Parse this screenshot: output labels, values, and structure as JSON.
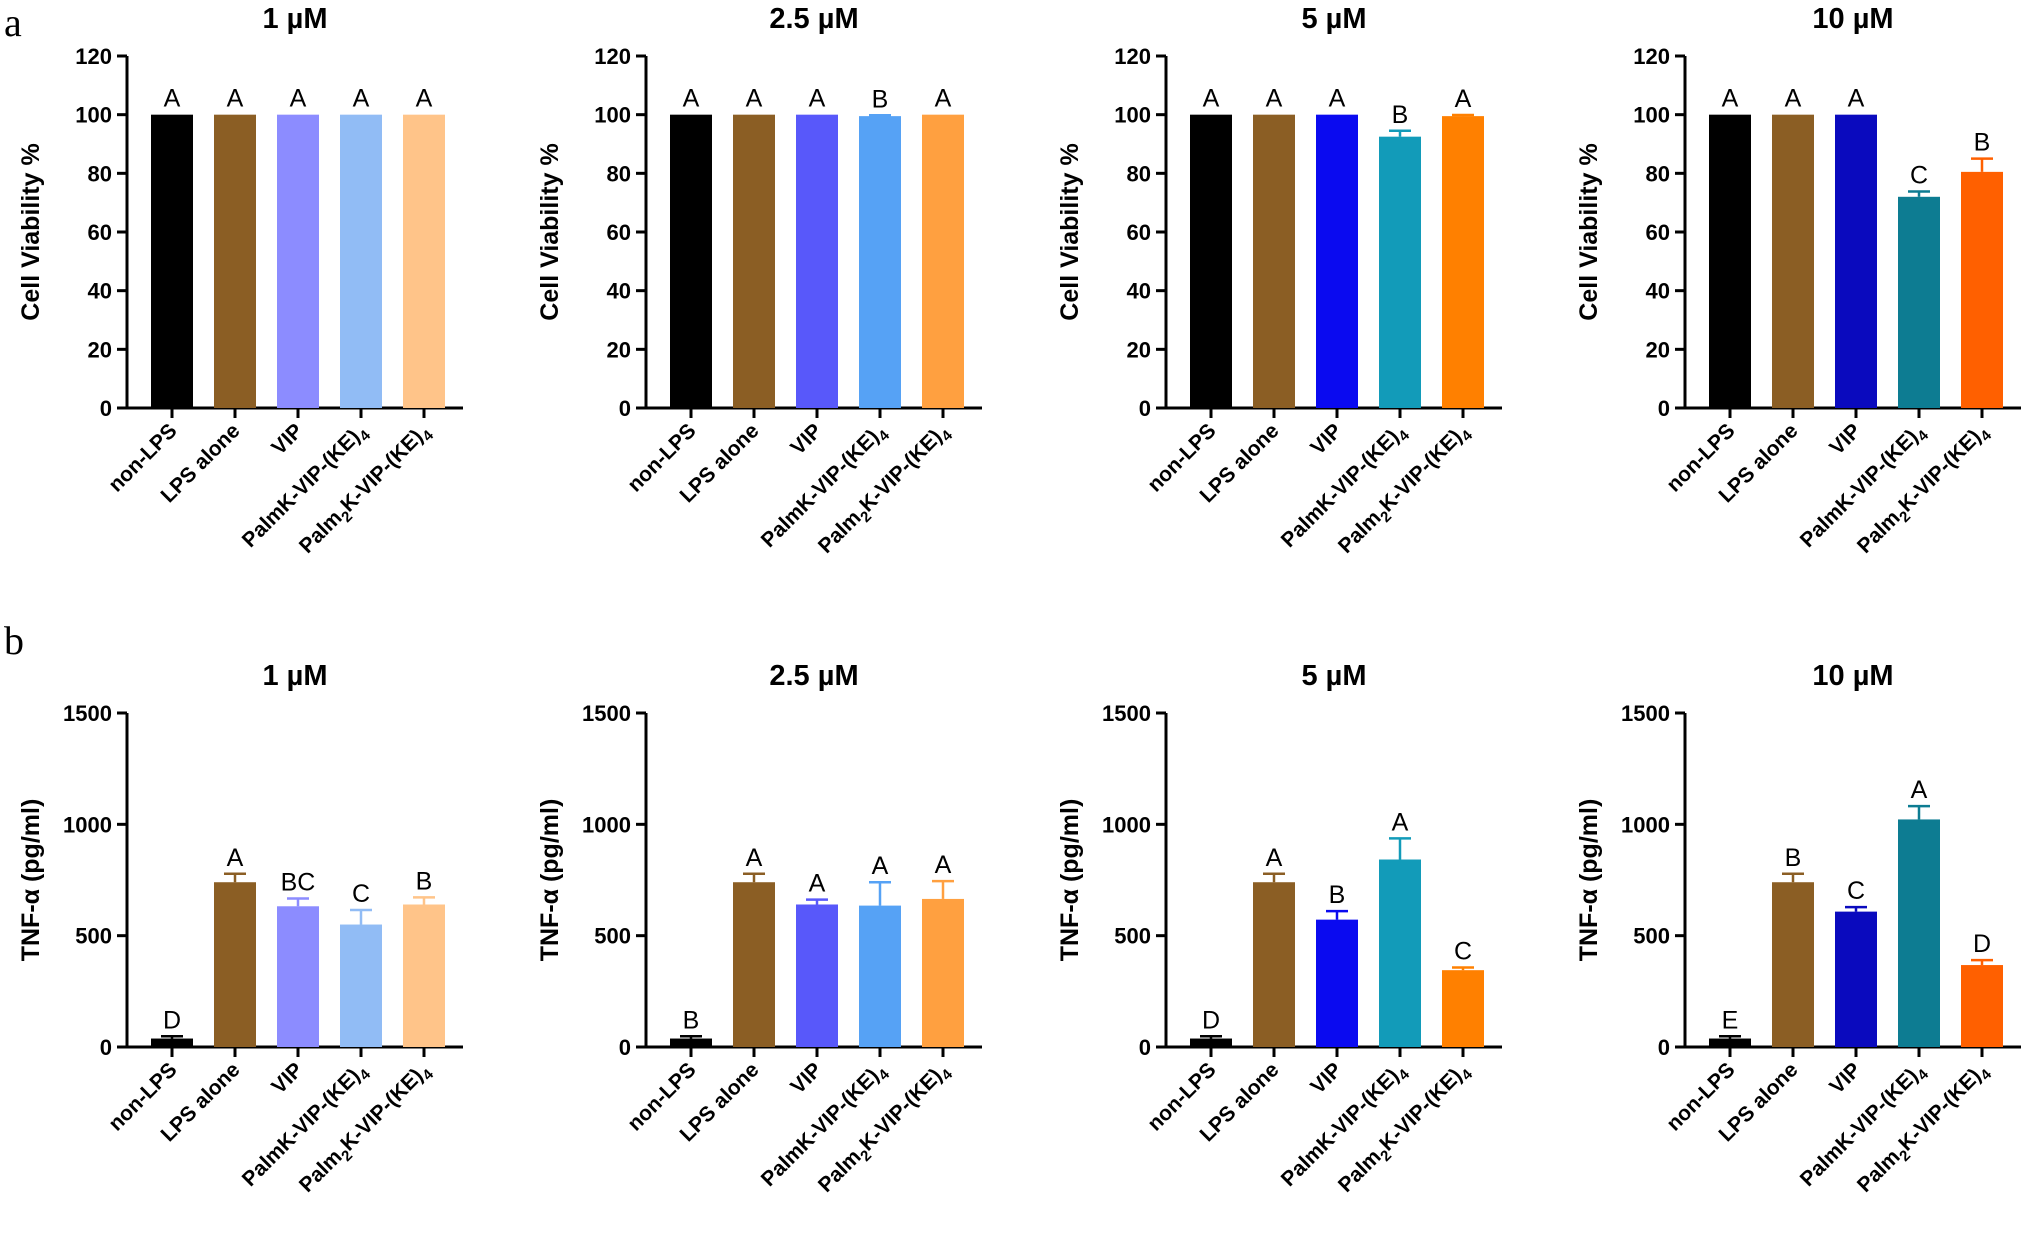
{
  "panel_labels": [
    "a",
    "b"
  ],
  "chart_data": [
    {
      "type": "bar",
      "panel": "a",
      "title": "1 µM",
      "ylabel": "Cell Viability %",
      "ylim": [
        0,
        120
      ],
      "yticks": [
        0,
        20,
        40,
        60,
        80,
        100,
        120
      ],
      "categories": [
        "non-LPS",
        "LPS alone",
        "VIP",
        "PalmK-VIP-(KE)4",
        "Palm2K-VIP-(KE)4"
      ],
      "values": [
        100,
        100,
        100,
        100,
        100
      ],
      "errors": [
        0,
        0,
        0,
        0,
        0
      ],
      "letters": [
        "A",
        "A",
        "A",
        "A",
        "A"
      ],
      "colors": [
        "#000000",
        "#8B5E24",
        "#8C8CFF",
        "#91BCF5",
        "#FFC489"
      ]
    },
    {
      "type": "bar",
      "panel": "a",
      "title": "2.5 µM",
      "ylabel": "Cell Viability %",
      "ylim": [
        0,
        120
      ],
      "yticks": [
        0,
        20,
        40,
        60,
        80,
        100,
        120
      ],
      "categories": [
        "non-LPS",
        "LPS alone",
        "VIP",
        "PalmK-VIP-(KE)4",
        "Palm2K-VIP-(KE)4"
      ],
      "values": [
        100,
        100,
        100,
        99.5,
        100
      ],
      "errors": [
        0,
        0,
        0,
        0.3,
        0
      ],
      "letters": [
        "A",
        "A",
        "A",
        "B",
        "A"
      ],
      "colors": [
        "#000000",
        "#8B5E24",
        "#5858FA",
        "#56A2F5",
        "#FFA040"
      ]
    },
    {
      "type": "bar",
      "panel": "a",
      "title": "5 µM",
      "ylabel": "Cell Viability %",
      "ylim": [
        0,
        120
      ],
      "yticks": [
        0,
        20,
        40,
        60,
        80,
        100,
        120
      ],
      "categories": [
        "non-LPS",
        "LPS alone",
        "VIP",
        "PalmK-VIP-(KE)4",
        "Palm2K-VIP-(KE)4"
      ],
      "values": [
        100,
        100,
        100,
        92.5,
        99.5
      ],
      "errors": [
        0,
        0,
        0,
        2,
        0.4
      ],
      "letters": [
        "A",
        "A",
        "A",
        "B",
        "A"
      ],
      "colors": [
        "#000000",
        "#8B5E24",
        "#0A0AF0",
        "#129BB9",
        "#FF8000"
      ]
    },
    {
      "type": "bar",
      "panel": "a",
      "title": "10 µM",
      "ylabel": "Cell Viability %",
      "ylim": [
        0,
        120
      ],
      "yticks": [
        0,
        20,
        40,
        60,
        80,
        100,
        120
      ],
      "categories": [
        "non-LPS",
        "LPS alone",
        "VIP",
        "PalmK-VIP-(KE)4",
        "Palm2K-VIP-(KE)4"
      ],
      "values": [
        100,
        100,
        100,
        72,
        80.5
      ],
      "errors": [
        0,
        0,
        0,
        1.8,
        4.5
      ],
      "letters": [
        "A",
        "A",
        "A",
        "C",
        "B"
      ],
      "colors": [
        "#000000",
        "#8B5E24",
        "#0A0ABE",
        "#0D7C92",
        "#FF6000"
      ]
    },
    {
      "type": "bar",
      "panel": "b",
      "title": "1 µM",
      "ylabel": "TNF-α (pg/ml)",
      "ylim": [
        0,
        1500
      ],
      "yticks": [
        0,
        500,
        1000,
        1500
      ],
      "categories": [
        "non-LPS",
        "LPS alone",
        "VIP",
        "PalmK-VIP-(KE)4",
        "Palm2K-VIP-(KE)4"
      ],
      "values": [
        38,
        740,
        632,
        550,
        640
      ],
      "errors": [
        10,
        38,
        35,
        65,
        32
      ],
      "letters": [
        "D",
        "A",
        "BC",
        "C",
        "B"
      ],
      "colors": [
        "#000000",
        "#8B5E24",
        "#8C8CFF",
        "#91BCF5",
        "#FFC489"
      ]
    },
    {
      "type": "bar",
      "panel": "b",
      "title": "2.5 µM",
      "ylabel": "TNF-α (pg/ml)",
      "ylim": [
        0,
        1500
      ],
      "yticks": [
        0,
        500,
        1000,
        1500
      ],
      "categories": [
        "non-LPS",
        "LPS alone",
        "VIP",
        "PalmK-VIP-(KE)4",
        "Palm2K-VIP-(KE)4"
      ],
      "values": [
        38,
        740,
        640,
        635,
        665
      ],
      "errors": [
        10,
        38,
        22,
        105,
        80
      ],
      "letters": [
        "B",
        "A",
        "A",
        "A",
        "A"
      ],
      "colors": [
        "#000000",
        "#8B5E24",
        "#5858FA",
        "#56A2F5",
        "#FFA040"
      ]
    },
    {
      "type": "bar",
      "panel": "b",
      "title": "5 µM",
      "ylabel": "TNF-α (pg/ml)",
      "ylim": [
        0,
        1500
      ],
      "yticks": [
        0,
        500,
        1000,
        1500
      ],
      "categories": [
        "non-LPS",
        "LPS alone",
        "VIP",
        "PalmK-VIP-(KE)4",
        "Palm2K-VIP-(KE)4"
      ],
      "values": [
        38,
        740,
        572,
        842,
        345
      ],
      "errors": [
        10,
        38,
        38,
        95,
        12
      ],
      "letters": [
        "D",
        "A",
        "B",
        "A",
        "C"
      ],
      "colors": [
        "#000000",
        "#8B5E24",
        "#0A0AF0",
        "#129BB9",
        "#FF8000"
      ]
    },
    {
      "type": "bar",
      "panel": "b",
      "title": "10 µM",
      "ylabel": "TNF-α (pg/ml)",
      "ylim": [
        0,
        1500
      ],
      "yticks": [
        0,
        500,
        1000,
        1500
      ],
      "categories": [
        "non-LPS",
        "LPS alone",
        "VIP",
        "PalmK-VIP-(KE)4",
        "Palm2K-VIP-(KE)4"
      ],
      "values": [
        38,
        740,
        608,
        1022,
        368
      ],
      "errors": [
        10,
        38,
        20,
        60,
        22
      ],
      "letters": [
        "E",
        "B",
        "C",
        "A",
        "D"
      ],
      "colors": [
        "#000000",
        "#8B5E24",
        "#0A0ABE",
        "#0D7C92",
        "#FF6000"
      ]
    }
  ]
}
